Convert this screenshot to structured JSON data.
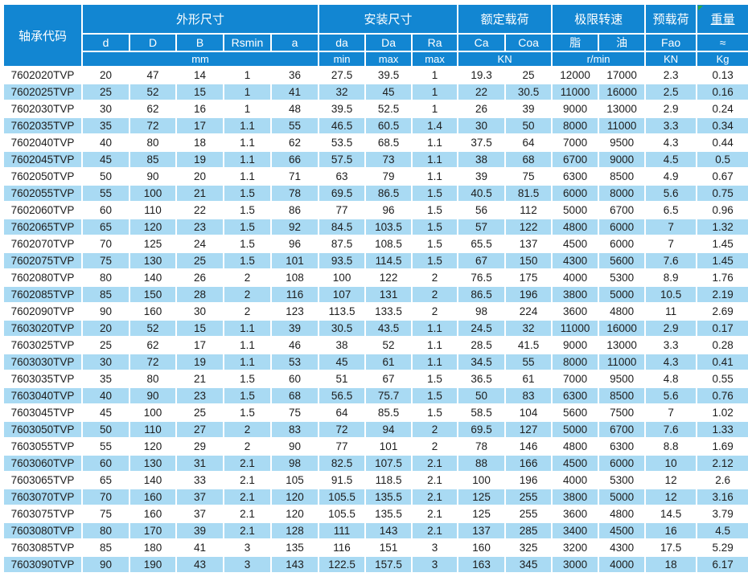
{
  "colors": {
    "header_blue": "#1286d2",
    "row_alt_blue": "#a9daf3",
    "header_text": "#ffffff",
    "body_text": "#1c1c1c",
    "flag_green": "#2faa3f",
    "gridline_white": "#ffffff"
  },
  "table": {
    "group_headers": [
      {
        "label": "轴承代码"
      },
      {
        "label": "外形尺寸"
      },
      {
        "label": "安装尺寸"
      },
      {
        "label": "额定载荷"
      },
      {
        "label": "极限转速"
      },
      {
        "label": "预载荷"
      },
      {
        "label": "重量"
      }
    ],
    "sub_headers": [
      "d",
      "D",
      "B",
      "Rsmin",
      "a",
      "da",
      "Da",
      "Ra",
      "Ca",
      "Coa",
      "脂",
      "油",
      "Fao",
      "≈"
    ],
    "unit_row": {
      "mm": "mm",
      "min": "min",
      "max1": "max",
      "max2": "max",
      "kn1": "KN",
      "rmin": "r/min",
      "kn2": "KN",
      "kg": "Kg"
    },
    "rows": [
      [
        "7602020TVP",
        "20",
        "47",
        "14",
        "1",
        "36",
        "27.5",
        "39.5",
        "1",
        "19.3",
        "25",
        "12000",
        "17000",
        "2.3",
        "0.13"
      ],
      [
        "7602025TVP",
        "25",
        "52",
        "15",
        "1",
        "41",
        "32",
        "45",
        "1",
        "22",
        "30.5",
        "11000",
        "16000",
        "2.5",
        "0.16"
      ],
      [
        "7602030TVP",
        "30",
        "62",
        "16",
        "1",
        "48",
        "39.5",
        "52.5",
        "1",
        "26",
        "39",
        "9000",
        "13000",
        "2.9",
        "0.24"
      ],
      [
        "7602035TVP",
        "35",
        "72",
        "17",
        "1.1",
        "55",
        "46.5",
        "60.5",
        "1.4",
        "30",
        "50",
        "8000",
        "11000",
        "3.3",
        "0.34"
      ],
      [
        "7602040TVP",
        "40",
        "80",
        "18",
        "1.1",
        "62",
        "53.5",
        "68.5",
        "1.1",
        "37.5",
        "64",
        "7000",
        "9500",
        "4.3",
        "0.44"
      ],
      [
        "7602045TVP",
        "45",
        "85",
        "19",
        "1.1",
        "66",
        "57.5",
        "73",
        "1.1",
        "38",
        "68",
        "6700",
        "9000",
        "4.5",
        "0.5"
      ],
      [
        "7602050TVP",
        "50",
        "90",
        "20",
        "1.1",
        "71",
        "63",
        "79",
        "1.1",
        "39",
        "75",
        "6300",
        "8500",
        "4.9",
        "0.67"
      ],
      [
        "7602055TVP",
        "55",
        "100",
        "21",
        "1.5",
        "78",
        "69.5",
        "86.5",
        "1.5",
        "40.5",
        "81.5",
        "6000",
        "8000",
        "5.6",
        "0.75"
      ],
      [
        "7602060TVP",
        "60",
        "110",
        "22",
        "1.5",
        "86",
        "77",
        "96",
        "1.5",
        "56",
        "112",
        "5000",
        "6700",
        "6.5",
        "0.96"
      ],
      [
        "7602065TVP",
        "65",
        "120",
        "23",
        "1.5",
        "92",
        "84.5",
        "103.5",
        "1.5",
        "57",
        "122",
        "4800",
        "6000",
        "7",
        "1.32"
      ],
      [
        "7602070TVP",
        "70",
        "125",
        "24",
        "1.5",
        "96",
        "87.5",
        "108.5",
        "1.5",
        "65.5",
        "137",
        "4500",
        "6000",
        "7",
        "1.45"
      ],
      [
        "7602075TVP",
        "75",
        "130",
        "25",
        "1.5",
        "101",
        "93.5",
        "114.5",
        "1.5",
        "67",
        "150",
        "4300",
        "5600",
        "7.6",
        "1.45"
      ],
      [
        "7602080TVP",
        "80",
        "140",
        "26",
        "2",
        "108",
        "100",
        "122",
        "2",
        "76.5",
        "175",
        "4000",
        "5300",
        "8.9",
        "1.76"
      ],
      [
        "7602085TVP",
        "85",
        "150",
        "28",
        "2",
        "116",
        "107",
        "131",
        "2",
        "86.5",
        "196",
        "3800",
        "5000",
        "10.5",
        "2.19"
      ],
      [
        "7602090TVP",
        "90",
        "160",
        "30",
        "2",
        "123",
        "113.5",
        "133.5",
        "2",
        "98",
        "224",
        "3600",
        "4800",
        "11",
        "2.69"
      ],
      [
        "7603020TVP",
        "20",
        "52",
        "15",
        "1.1",
        "39",
        "30.5",
        "43.5",
        "1.1",
        "24.5",
        "32",
        "11000",
        "16000",
        "2.9",
        "0.17"
      ],
      [
        "7603025TVP",
        "25",
        "62",
        "17",
        "1.1",
        "46",
        "38",
        "52",
        "1.1",
        "28.5",
        "41.5",
        "9000",
        "13000",
        "3.3",
        "0.28"
      ],
      [
        "7603030TVP",
        "30",
        "72",
        "19",
        "1.1",
        "53",
        "45",
        "61",
        "1.1",
        "34.5",
        "55",
        "8000",
        "11000",
        "4.3",
        "0.41"
      ],
      [
        "7603035TVP",
        "35",
        "80",
        "21",
        "1.5",
        "60",
        "51",
        "67",
        "1.5",
        "36.5",
        "61",
        "7000",
        "9500",
        "4.8",
        "0.55"
      ],
      [
        "7603040TVP",
        "40",
        "90",
        "23",
        "1.5",
        "68",
        "56.5",
        "75.7",
        "1.5",
        "50",
        "83",
        "6300",
        "8500",
        "5.6",
        "0.76"
      ],
      [
        "7603045TVP",
        "45",
        "100",
        "25",
        "1.5",
        "75",
        "64",
        "85.5",
        "1.5",
        "58.5",
        "104",
        "5600",
        "7500",
        "7",
        "1.02"
      ],
      [
        "7603050TVP",
        "50",
        "110",
        "27",
        "2",
        "83",
        "72",
        "94",
        "2",
        "69.5",
        "127",
        "5000",
        "6700",
        "7.6",
        "1.33"
      ],
      [
        "7603055TVP",
        "55",
        "120",
        "29",
        "2",
        "90",
        "77",
        "101",
        "2",
        "78",
        "146",
        "4800",
        "6300",
        "8.8",
        "1.69"
      ],
      [
        "7603060TVP",
        "60",
        "130",
        "31",
        "2.1",
        "98",
        "82.5",
        "107.5",
        "2.1",
        "88",
        "166",
        "4500",
        "6000",
        "10",
        "2.12"
      ],
      [
        "7603065TVP",
        "65",
        "140",
        "33",
        "2.1",
        "105",
        "91.5",
        "118.5",
        "2.1",
        "100",
        "196",
        "4000",
        "5300",
        "12",
        "2.6"
      ],
      [
        "7603070TVP",
        "70",
        "160",
        "37",
        "2.1",
        "120",
        "105.5",
        "135.5",
        "2.1",
        "125",
        "255",
        "3800",
        "5000",
        "12",
        "3.16"
      ],
      [
        "7603075TVP",
        "75",
        "160",
        "37",
        "2.1",
        "120",
        "105.5",
        "135.5",
        "2.1",
        "125",
        "255",
        "3600",
        "4800",
        "14.5",
        "3.79"
      ],
      [
        "7603080TVP",
        "80",
        "170",
        "39",
        "2.1",
        "128",
        "111",
        "143",
        "2.1",
        "137",
        "285",
        "3400",
        "4500",
        "16",
        "4.5"
      ],
      [
        "7603085TVP",
        "85",
        "180",
        "41",
        "3",
        "135",
        "116",
        "151",
        "3",
        "160",
        "325",
        "3200",
        "4300",
        "17.5",
        "5.29"
      ],
      [
        "7603090TVP",
        "90",
        "190",
        "43",
        "3",
        "143",
        "122.5",
        "157.5",
        "3",
        "163",
        "345",
        "3000",
        "4000",
        "18",
        "6.17"
      ]
    ]
  }
}
